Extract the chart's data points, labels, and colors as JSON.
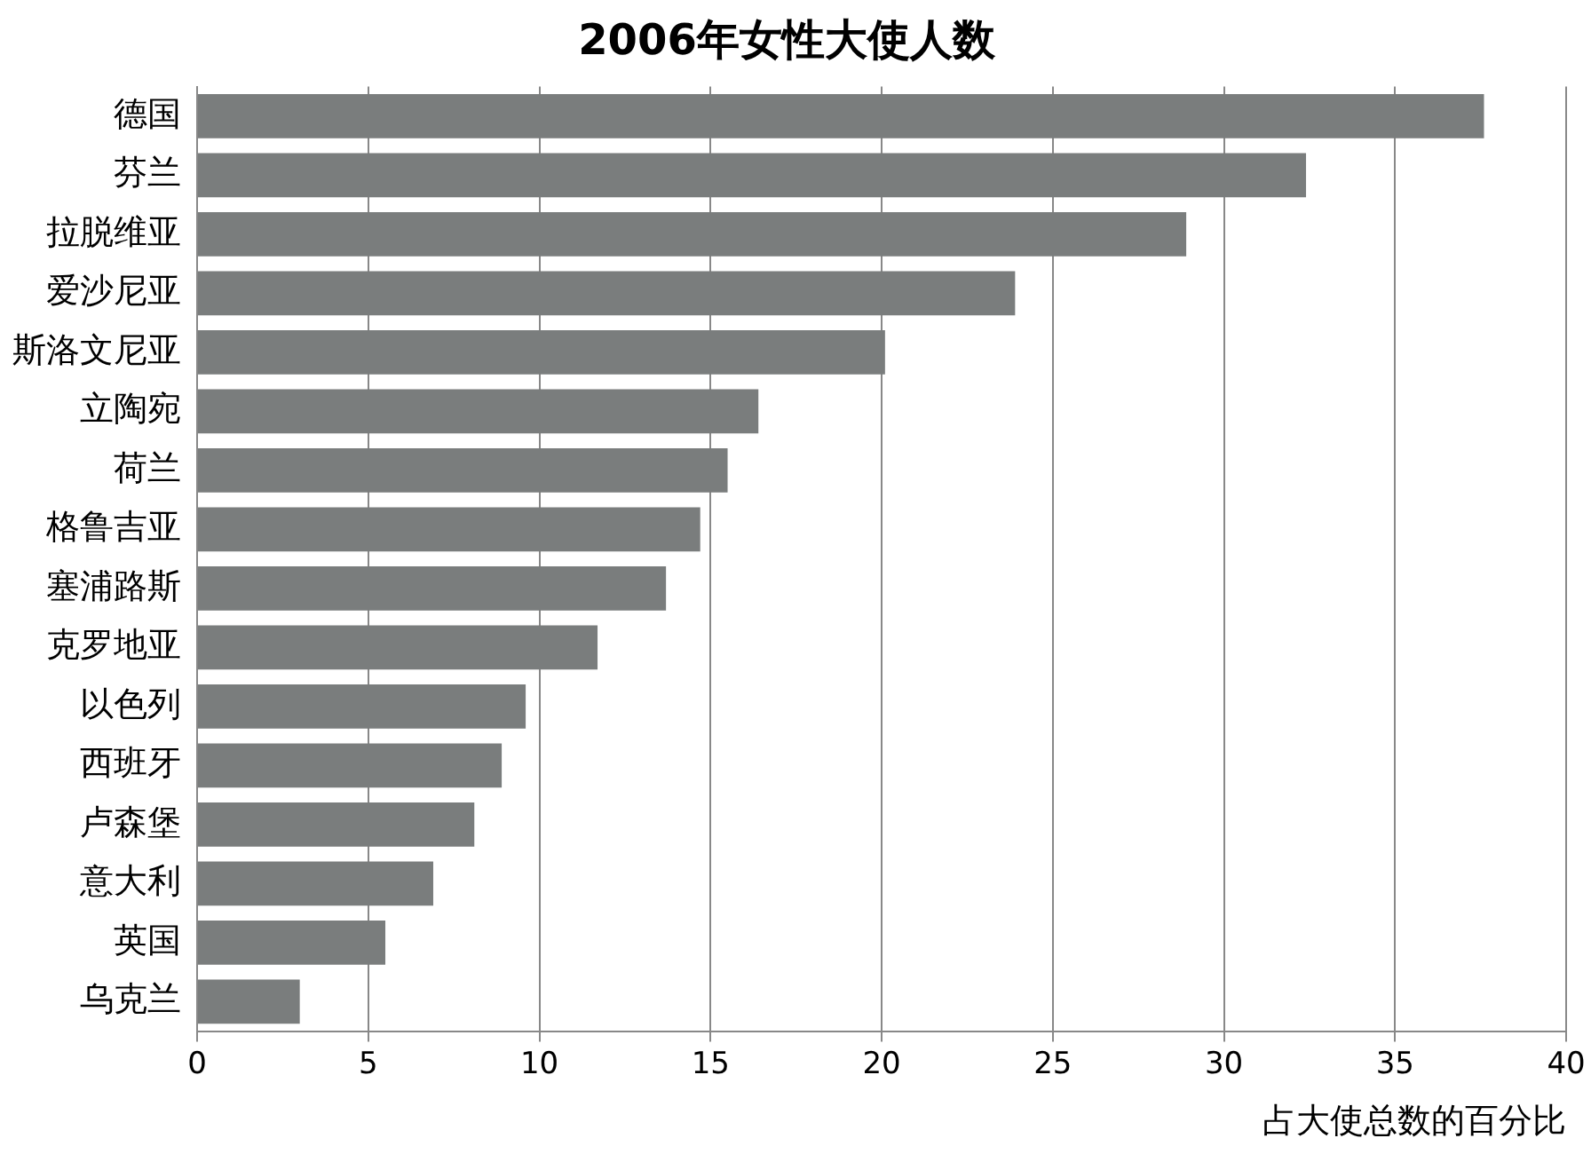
{
  "chart_data": {
    "type": "bar",
    "orientation": "horizontal",
    "title": "2006年女性大使人数",
    "xlabel": "占大使总数的百分比",
    "categories": [
      "德国",
      "芬兰",
      "拉脱维亚",
      "爱沙尼亚",
      "斯洛文尼亚",
      "立陶宛",
      "荷兰",
      "格鲁吉亚",
      "塞浦路斯",
      "克罗地亚",
      "以色列",
      "西班牙",
      "卢森堡",
      "意大利",
      "英国",
      "乌克兰"
    ],
    "values": [
      37.6,
      32.4,
      28.9,
      23.9,
      20.1,
      16.4,
      15.5,
      14.7,
      13.7,
      11.7,
      9.6,
      8.9,
      8.1,
      6.9,
      5.5,
      3.0
    ],
    "color": "#7a7d7d",
    "xlim": [
      0,
      40
    ],
    "xticks": [
      0,
      5,
      10,
      15,
      20,
      25,
      30,
      35,
      40
    ],
    "grid": "x",
    "legend": false
  }
}
